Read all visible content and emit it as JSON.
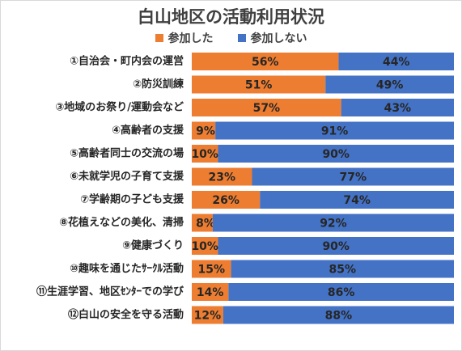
{
  "chart_data": {
    "type": "bar",
    "orientation": "horizontal",
    "stacked": true,
    "percent_stacked": true,
    "title": "白山地区の活動利用状況",
    "legend_position": "top",
    "categories": [
      "①自治会・町内会の運営",
      "②防災訓練",
      "③地域のお祭り/運動会など",
      "④高齢者の支援",
      "⑤高齢者同士の交流の場",
      "⑥未就学児の子育て支援",
      "⑦学齢期の子ども支援",
      "⑧花植えなどの美化、清掃",
      "⑨健康づくり",
      "⑩趣味を通じたｻｰｸﾙ活動",
      "⑪生涯学習、地区ｾﾝﾀｰでの学び",
      "⑫白山の安全を守る活動"
    ],
    "series": [
      {
        "name": "参加した",
        "color": "#ed7d31",
        "values": [
          56,
          51,
          57,
          9,
          10,
          23,
          26,
          8,
          10,
          15,
          14,
          12
        ],
        "labels": [
          "56%",
          "51%",
          "57%",
          "9%",
          "10%",
          "23%",
          "26%",
          "8%",
          "10%",
          "15%",
          "14%",
          "12%"
        ]
      },
      {
        "name": "参加しない",
        "color": "#4472c4",
        "values": [
          44,
          49,
          43,
          91,
          90,
          77,
          74,
          92,
          90,
          85,
          86,
          88
        ],
        "labels": [
          "44%",
          "49%",
          "43%",
          "91%",
          "90%",
          "77%",
          "74%",
          "92%",
          "90%",
          "85%",
          "86%",
          "88%"
        ]
      }
    ],
    "xlim": [
      0,
      100
    ],
    "grid": false
  }
}
